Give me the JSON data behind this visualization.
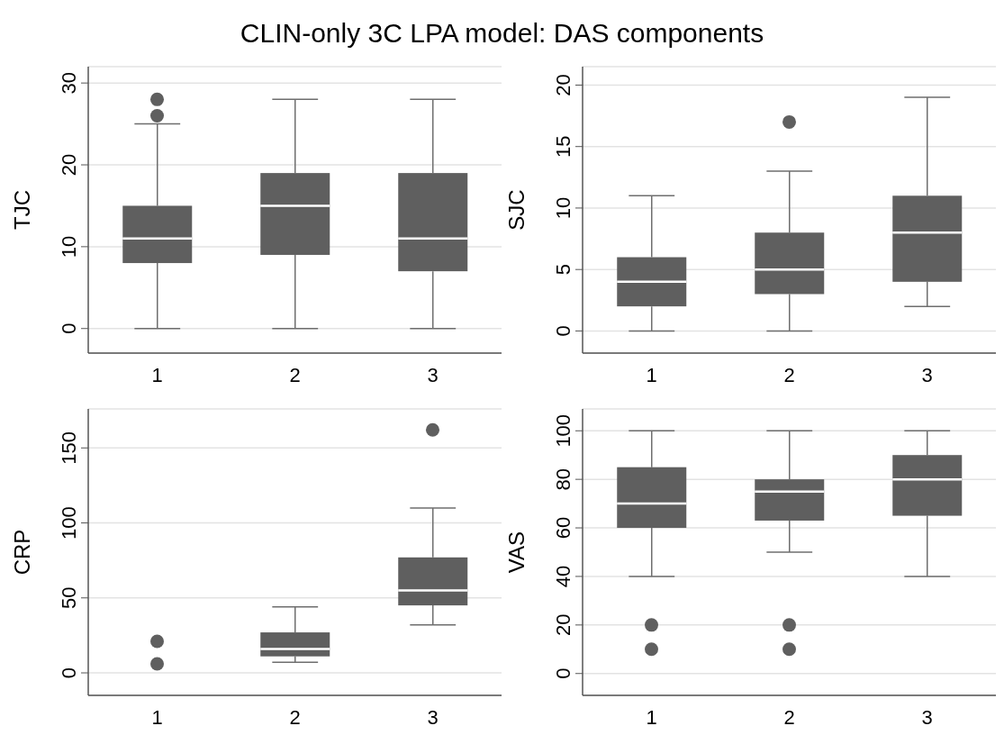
{
  "chart_data": [
    {
      "type": "box",
      "title": "CLIN-only 3C LPA model: DAS components",
      "ylabel": "TJC",
      "categories": [
        "1",
        "2",
        "3"
      ],
      "color": "#5f5f5f",
      "grid": "y",
      "ylim": [
        -3,
        32
      ],
      "yticks": [
        0,
        10,
        20,
        30
      ],
      "boxes": [
        {
          "low": 0,
          "q1": 8,
          "median": 11,
          "q3": 15,
          "high": 25,
          "outliers": [
            26,
            28
          ]
        },
        {
          "low": 0,
          "q1": 9,
          "median": 15,
          "q3": 19,
          "high": 28
        },
        {
          "low": 0,
          "q1": 7,
          "median": 11,
          "q3": 19,
          "high": 28
        }
      ]
    },
    {
      "type": "box",
      "ylabel": "SJC",
      "categories": [
        "1",
        "2",
        "3"
      ],
      "color": "#5f5f5f",
      "grid": "y",
      "ylim": [
        -1.8,
        21.5
      ],
      "yticks": [
        0,
        5,
        10,
        15,
        20
      ],
      "boxes": [
        {
          "low": 0,
          "q1": 2,
          "median": 4,
          "q3": 6,
          "high": 11
        },
        {
          "low": 0,
          "q1": 3,
          "median": 5,
          "q3": 8,
          "high": 13,
          "outliers": [
            17
          ]
        },
        {
          "low": 2,
          "q1": 4,
          "median": 8,
          "q3": 11,
          "high": 19
        }
      ]
    },
    {
      "type": "box",
      "ylabel": "CRP",
      "categories": [
        "1",
        "2",
        "3"
      ],
      "color": "#5f5f5f",
      "grid": "y",
      "ylim": [
        -15,
        176
      ],
      "yticks": [
        0,
        50,
        100,
        150
      ],
      "series": [
        {
          "type": "scatter",
          "x": [
            "1",
            "1"
          ],
          "values": [
            6,
            21
          ],
          "color": "#5f5f5f"
        }
      ],
      "boxes": [
        null,
        {
          "low": 7,
          "q1": 11,
          "median": 16,
          "q3": 27,
          "high": 44
        },
        {
          "low": 32,
          "q1": 45,
          "median": 55,
          "q3": 77,
          "high": 110,
          "outliers": [
            162
          ]
        }
      ]
    },
    {
      "type": "box",
      "ylabel": "VAS",
      "categories": [
        "1",
        "2",
        "3"
      ],
      "color": "#5f5f5f",
      "grid": "y",
      "ylim": [
        -9,
        109
      ],
      "yticks": [
        0,
        20,
        40,
        60,
        80,
        100
      ],
      "boxes": [
        {
          "low": 40,
          "q1": 60,
          "median": 70,
          "q3": 85,
          "high": 100,
          "outliers": [
            10,
            20
          ]
        },
        {
          "low": 50,
          "q1": 63,
          "median": 75,
          "q3": 80,
          "high": 100,
          "outliers": [
            10,
            20
          ]
        },
        {
          "low": 40,
          "q1": 65,
          "median": 80,
          "q3": 90,
          "high": 100
        }
      ]
    }
  ]
}
